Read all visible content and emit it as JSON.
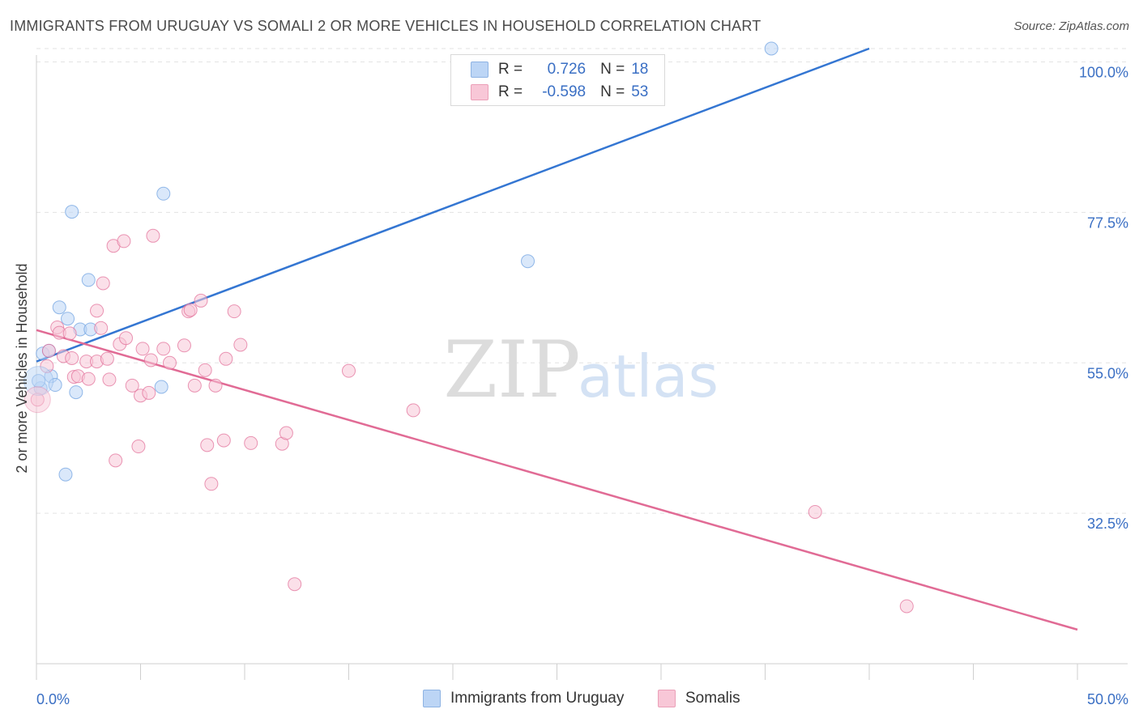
{
  "header": {
    "title": "IMMIGRANTS FROM URUGUAY VS SOMALI 2 OR MORE VEHICLES IN HOUSEHOLD CORRELATION CHART",
    "source": "Source: ZipAtlas.com"
  },
  "watermark": {
    "zip": "ZIP",
    "atlas": "atlas"
  },
  "legend_top": {
    "rows": [
      {
        "r_label": "R =",
        "r_value": "0.726",
        "n_label": "N =",
        "n_value": "18",
        "color": "#a9c8f0"
      },
      {
        "r_label": "R =",
        "r_value": "-0.598",
        "n_label": "N =",
        "n_value": "53",
        "color": "#f6b8cc"
      }
    ]
  },
  "legend_bottom": {
    "series": [
      {
        "label": "Immigrants from Uruguay",
        "color": "#a9c8f0"
      },
      {
        "label": "Somalis",
        "color": "#f6b8cc"
      }
    ]
  },
  "chart_data": {
    "type": "scatter",
    "ylabel": "2 or more Vehicles in Household",
    "xlim": [
      0,
      50
    ],
    "ylim": [
      10,
      102
    ],
    "x_tick_labels": [
      "0.0%",
      "50.0%"
    ],
    "y_tick_labels": [
      "32.5%",
      "55.0%",
      "77.5%",
      "100.0%"
    ],
    "y_ticks": [
      32.5,
      55.0,
      77.5,
      100.0
    ],
    "grid": true,
    "series": [
      {
        "name": "Immigrants from Uruguay",
        "color": "#6a9ee0",
        "fill": "#bcd5f5",
        "trend": {
          "x": [
            0,
            40
          ],
          "y": [
            55.2,
            102
          ]
        },
        "points": [
          [
            0.2,
            51.2
          ],
          [
            0.3,
            56.4
          ],
          [
            0.6,
            56.8
          ],
          [
            0.7,
            53.0
          ],
          [
            0.9,
            51.7
          ],
          [
            1.1,
            63.3
          ],
          [
            1.5,
            61.6
          ],
          [
            1.7,
            77.6
          ],
          [
            1.9,
            50.6
          ],
          [
            2.1,
            60.0
          ],
          [
            2.5,
            67.4
          ],
          [
            2.6,
            60.0
          ],
          [
            1.4,
            38.3
          ],
          [
            6.1,
            80.3
          ],
          [
            6.0,
            51.4
          ],
          [
            23.6,
            70.2
          ],
          [
            35.3,
            102.0
          ],
          [
            0.1,
            52.3
          ]
        ]
      },
      {
        "name": "Somalis",
        "color": "#e16b95",
        "fill": "#f8c7d7",
        "trend": {
          "x": [
            0,
            50
          ],
          "y": [
            59.9,
            15.1
          ]
        },
        "points": [
          [
            0.5,
            54.5
          ],
          [
            0.6,
            56.8
          ],
          [
            1.0,
            60.3
          ],
          [
            1.1,
            59.5
          ],
          [
            1.3,
            56.0
          ],
          [
            1.6,
            59.4
          ],
          [
            1.7,
            55.7
          ],
          [
            1.8,
            52.9
          ],
          [
            2.0,
            53.0
          ],
          [
            2.4,
            55.2
          ],
          [
            2.5,
            52.6
          ],
          [
            2.9,
            62.8
          ],
          [
            2.9,
            55.2
          ],
          [
            3.1,
            60.2
          ],
          [
            3.2,
            66.9
          ],
          [
            3.4,
            55.6
          ],
          [
            3.5,
            52.5
          ],
          [
            3.7,
            72.5
          ],
          [
            3.8,
            40.4
          ],
          [
            4.0,
            57.8
          ],
          [
            4.2,
            73.2
          ],
          [
            4.3,
            58.7
          ],
          [
            4.6,
            51.6
          ],
          [
            4.9,
            42.5
          ],
          [
            5.0,
            50.1
          ],
          [
            5.1,
            57.1
          ],
          [
            5.4,
            50.5
          ],
          [
            5.5,
            55.4
          ],
          [
            5.6,
            74.0
          ],
          [
            6.1,
            57.1
          ],
          [
            6.4,
            55.0
          ],
          [
            7.1,
            57.6
          ],
          [
            7.3,
            62.7
          ],
          [
            7.4,
            62.9
          ],
          [
            7.6,
            51.6
          ],
          [
            7.9,
            64.3
          ],
          [
            8.1,
            53.9
          ],
          [
            8.2,
            42.7
          ],
          [
            8.4,
            36.9
          ],
          [
            8.6,
            51.6
          ],
          [
            9.0,
            43.4
          ],
          [
            9.1,
            55.6
          ],
          [
            9.5,
            62.7
          ],
          [
            9.8,
            57.7
          ],
          [
            10.3,
            43.0
          ],
          [
            11.8,
            42.9
          ],
          [
            12.0,
            44.5
          ],
          [
            12.4,
            21.9
          ],
          [
            15.0,
            53.8
          ],
          [
            18.1,
            47.9
          ],
          [
            37.4,
            32.7
          ],
          [
            41.8,
            18.6
          ],
          [
            0.05,
            49.5
          ]
        ]
      }
    ]
  }
}
